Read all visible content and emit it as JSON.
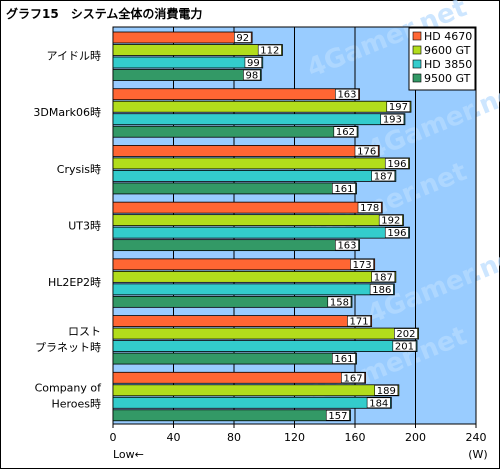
{
  "title": "グラフ15　システム全体の消費電力",
  "chart_data": {
    "type": "bar",
    "orientation": "horizontal",
    "categories": [
      [
        "アイドル時"
      ],
      [
        "3DMark06時"
      ],
      [
        "Crysis時"
      ],
      [
        "UT3時"
      ],
      [
        "HL2EP2時"
      ],
      [
        "ロスト",
        "プラネット時"
      ],
      [
        "Company of",
        "Heroes時"
      ]
    ],
    "series": [
      {
        "name": "HD 4670",
        "color": "#ff6633",
        "values": [
          92,
          163,
          176,
          178,
          173,
          171,
          167
        ]
      },
      {
        "name": "9600 GT",
        "color": "#b2dd1c",
        "values": [
          112,
          197,
          196,
          192,
          187,
          202,
          189
        ]
      },
      {
        "name": "HD 3850",
        "color": "#33cccc",
        "values": [
          99,
          193,
          187,
          196,
          186,
          201,
          184
        ]
      },
      {
        "name": "9500 GT",
        "color": "#339966",
        "values": [
          98,
          162,
          161,
          163,
          158,
          161,
          157
        ]
      }
    ],
    "xlim": [
      0,
      240
    ],
    "xticks": [
      0,
      40,
      80,
      120,
      160,
      200,
      240
    ],
    "unit_label": "(W)",
    "low_label": "Low←",
    "legend_position": "top-right",
    "grid": true,
    "plot_background": "#99ccff",
    "watermark": "4Gamer.net"
  }
}
